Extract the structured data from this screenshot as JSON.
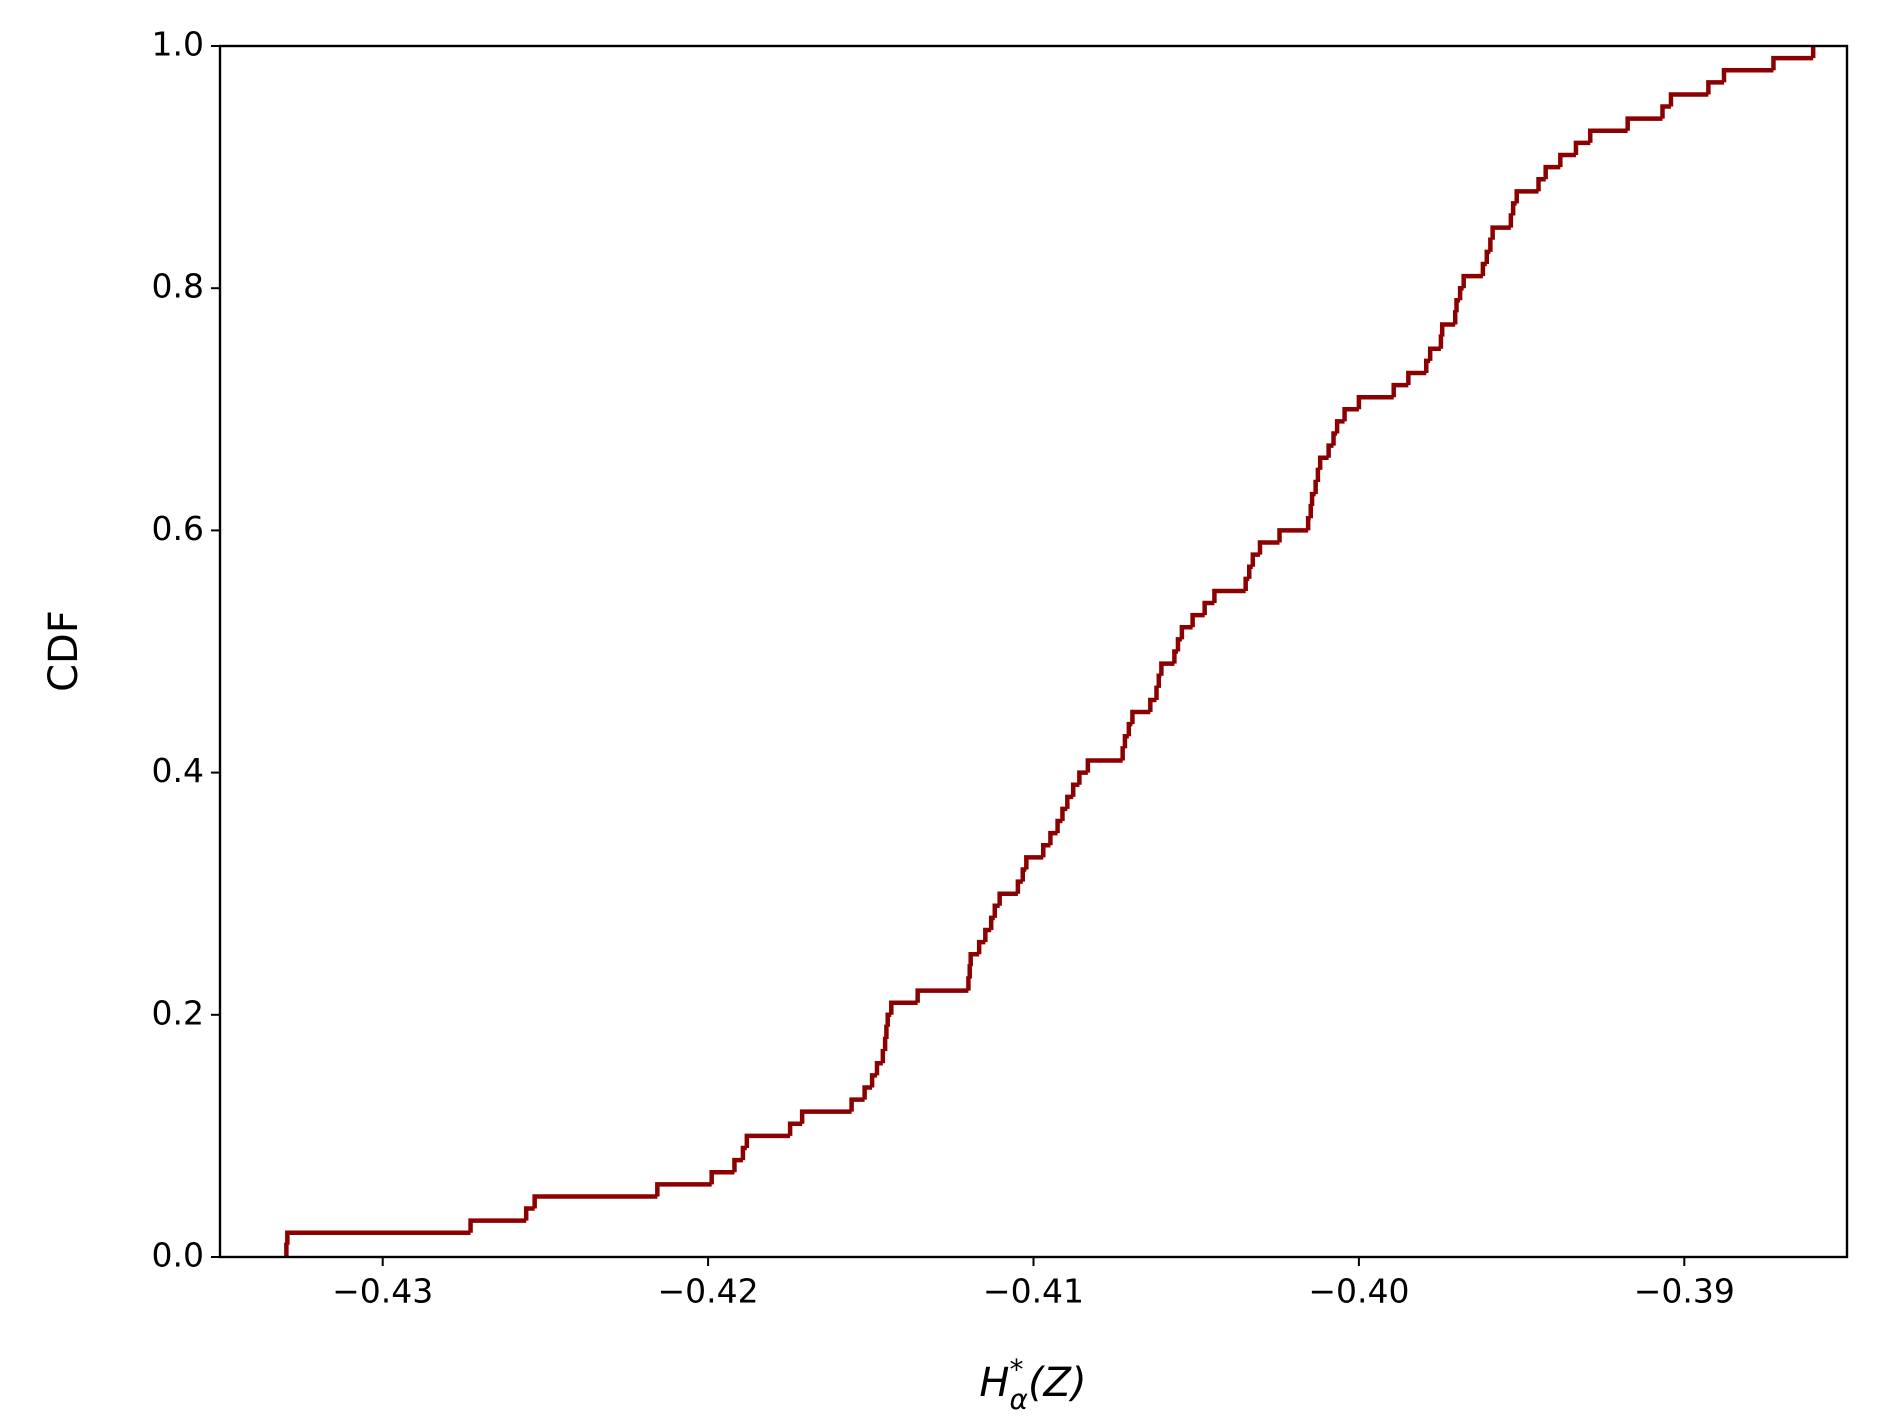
{
  "chart_data": {
    "type": "step",
    "y_label": "CDF",
    "x_label": {
      "base": "H",
      "sup": "*",
      "sub": "α",
      "arg": "(Z)"
    },
    "color": "#8b0000",
    "xlim": [
      -0.435,
      -0.385
    ],
    "ylim": [
      0,
      1
    ],
    "xticks": [
      {
        "value": -0.43,
        "label": "−0.43"
      },
      {
        "value": -0.42,
        "label": "−0.42"
      },
      {
        "value": -0.41,
        "label": "−0.41"
      },
      {
        "value": -0.4,
        "label": "−0.40"
      },
      {
        "value": -0.39,
        "label": "−0.39"
      }
    ],
    "yticks": [
      {
        "value": 0,
        "label": "0.0"
      },
      0.2,
      0.4,
      0.6,
      0.8,
      {
        "value": 1,
        "label": "1.0"
      }
    ],
    "x": [
      -0.43296,
      -0.43293,
      -0.4273,
      -0.42559,
      -0.42533,
      -0.42156,
      -0.41989,
      -0.41919,
      -0.41893,
      -0.41881,
      -0.41748,
      -0.41711,
      -0.41559,
      -0.41519,
      -0.41496,
      -0.41481,
      -0.41463,
      -0.41456,
      -0.41452,
      -0.41448,
      -0.41437,
      -0.41356,
      -0.412,
      -0.41196,
      -0.41193,
      -0.41167,
      -0.41148,
      -0.4113,
      -0.41119,
      -0.41104,
      -0.41048,
      -0.41033,
      -0.41022,
      -0.4097,
      -0.40948,
      -0.40926,
      -0.40911,
      -0.40896,
      -0.40878,
      -0.40859,
      -0.40833,
      -0.40726,
      -0.40719,
      -0.40707,
      -0.40696,
      -0.40641,
      -0.40622,
      -0.40615,
      -0.40607,
      -0.40567,
      -0.40556,
      -0.40544,
      -0.40511,
      -0.40474,
      -0.40444,
      -0.40348,
      -0.40337,
      -0.40326,
      -0.40304,
      -0.40244,
      -0.40156,
      -0.40148,
      -0.40144,
      -0.40133,
      -0.40126,
      -0.40119,
      -0.40093,
      -0.40078,
      -0.40067,
      -0.40044,
      -0.4,
      -0.39893,
      -0.39848,
      -0.39793,
      -0.39781,
      -0.39748,
      -0.39744,
      -0.39704,
      -0.397,
      -0.39689,
      -0.39678,
      -0.39619,
      -0.39607,
      -0.39596,
      -0.39589,
      -0.39533,
      -0.39526,
      -0.39515,
      -0.39448,
      -0.39426,
      -0.39381,
      -0.39333,
      -0.39289,
      -0.39174,
      -0.39067,
      -0.39041,
      -0.38926,
      -0.38878,
      -0.38726,
      -0.38604
    ],
    "values": [
      0.01,
      0.02,
      0.03,
      0.04,
      0.05,
      0.06,
      0.07,
      0.08,
      0.09,
      0.1,
      0.11,
      0.12,
      0.13,
      0.14,
      0.15,
      0.16,
      0.17,
      0.18,
      0.19,
      0.2,
      0.21,
      0.22,
      0.23,
      0.24,
      0.25,
      0.26,
      0.27,
      0.28,
      0.29,
      0.3,
      0.31,
      0.32,
      0.33,
      0.34,
      0.35,
      0.36,
      0.37,
      0.38,
      0.39,
      0.4,
      0.41,
      0.42,
      0.43,
      0.44,
      0.45,
      0.46,
      0.47,
      0.48,
      0.49,
      0.5,
      0.51,
      0.52,
      0.53,
      0.54,
      0.55,
      0.56,
      0.57,
      0.58,
      0.59,
      0.6,
      0.61,
      0.62,
      0.63,
      0.64,
      0.65,
      0.66,
      0.67,
      0.68,
      0.69,
      0.7,
      0.71,
      0.72,
      0.73,
      0.74,
      0.75,
      0.76,
      0.77,
      0.78,
      0.79,
      0.8,
      0.81,
      0.82,
      0.83,
      0.84,
      0.85,
      0.86,
      0.87,
      0.88,
      0.89,
      0.9,
      0.91,
      0.92,
      0.93,
      0.94,
      0.95,
      0.96,
      0.97,
      0.98,
      0.99,
      1.0
    ]
  }
}
